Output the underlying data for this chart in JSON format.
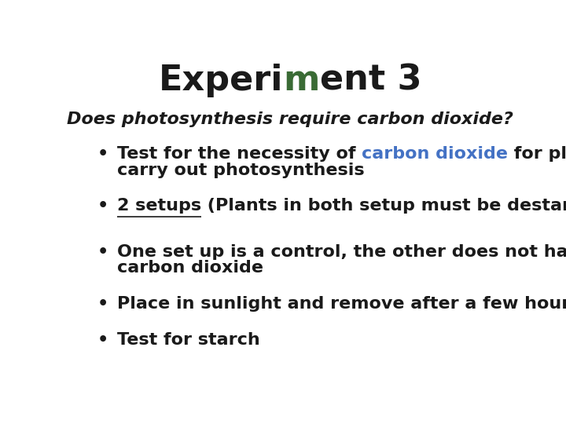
{
  "title_part1": "Experi",
  "title_m": "m",
  "title_part2": "ent 3",
  "subtitle": "Does photosynthesis require carbon dioxide?",
  "bullet1_pre": "Test for the necessity of ",
  "bullet1_colored": "carbon dioxide",
  "bullet1_post": " for plants to",
  "bullet1_line2": "carry out photosynthesis",
  "bullet2_underlined": "2 setups",
  "bullet2_rest": " (Plants in both setup must be destarched)",
  "bullet3_line1": "One set up is a control, the other does not have",
  "bullet3_line2": "carbon dioxide",
  "bullet4": "Place in sunlight and remove after a few hours",
  "bullet5": "Test for starch",
  "title_color": "#1a1a1a",
  "title_m_color": "#3a6b35",
  "subtitle_color": "#1a1a1a",
  "bullet_color": "#1a1a1a",
  "carbon_dioxide_color": "#4472c4",
  "background_color": "#ffffff",
  "title_fontsize": 32,
  "subtitle_fontsize": 16,
  "bullet_fontsize": 16
}
